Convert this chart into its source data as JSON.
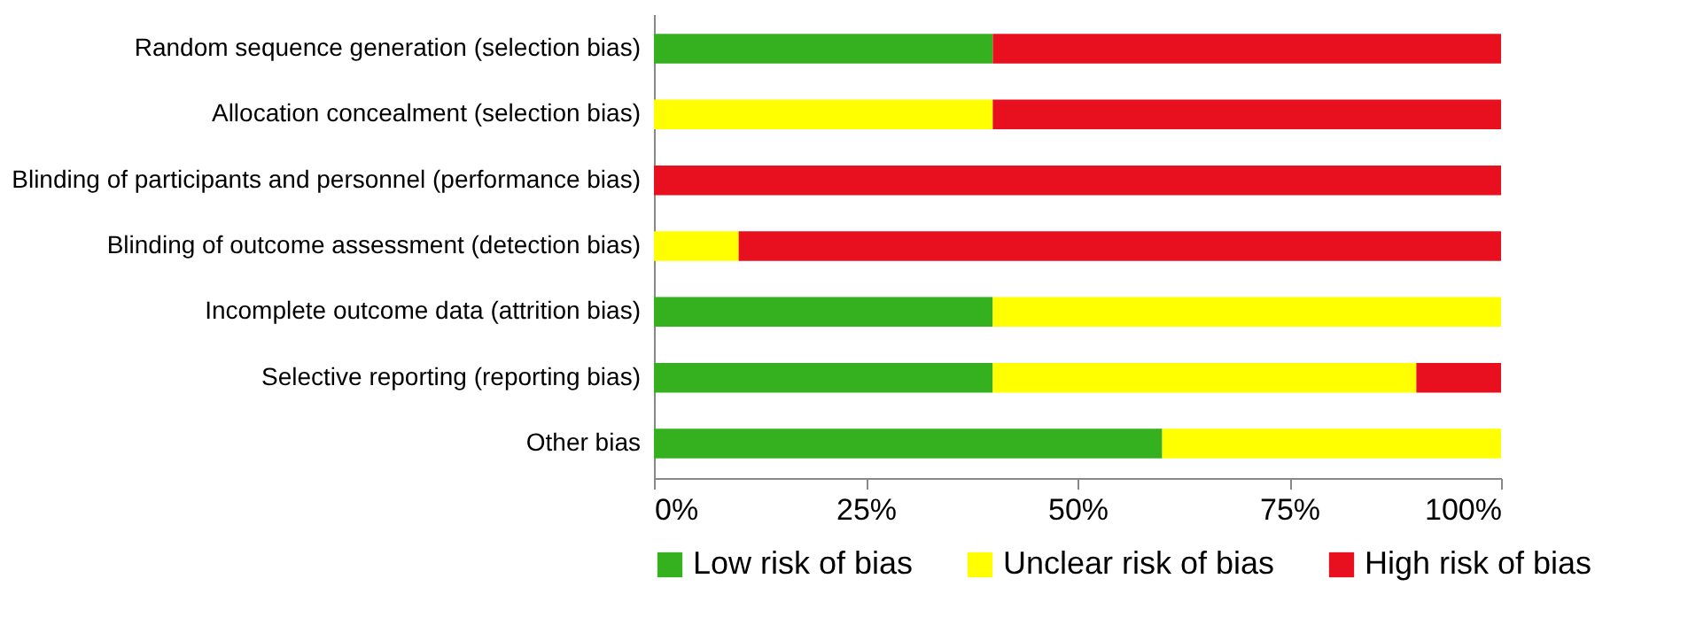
{
  "chart_data": {
    "type": "bar",
    "orientation": "horizontal",
    "stacked": true,
    "categories": [
      "Random sequence generation (selection bias)",
      "Allocation concealment (selection bias)",
      "Blinding of participants and personnel (performance bias)",
      "Blinding of outcome assessment (detection bias)",
      "Incomplete outcome data (attrition bias)",
      "Selective reporting (reporting bias)",
      "Other bias"
    ],
    "series": [
      {
        "name": "Low risk of bias",
        "color": "#35b01e",
        "values": [
          40,
          0,
          0,
          0,
          40,
          40,
          60
        ]
      },
      {
        "name": "Unclear risk of bias",
        "color": "#ffff00",
        "values": [
          0,
          40,
          0,
          10,
          60,
          50,
          40
        ]
      },
      {
        "name": "High risk of bias",
        "color": "#e8101e",
        "values": [
          60,
          60,
          100,
          90,
          0,
          10,
          0
        ]
      }
    ],
    "xlim": [
      0,
      100
    ],
    "xticks": [
      {
        "value": 0,
        "label": "0%"
      },
      {
        "value": 25,
        "label": "25%"
      },
      {
        "value": 50,
        "label": "50%"
      },
      {
        "value": 75,
        "label": "75%"
      },
      {
        "value": 100,
        "label": "100%"
      }
    ],
    "grid": false,
    "legend": "bottom"
  }
}
